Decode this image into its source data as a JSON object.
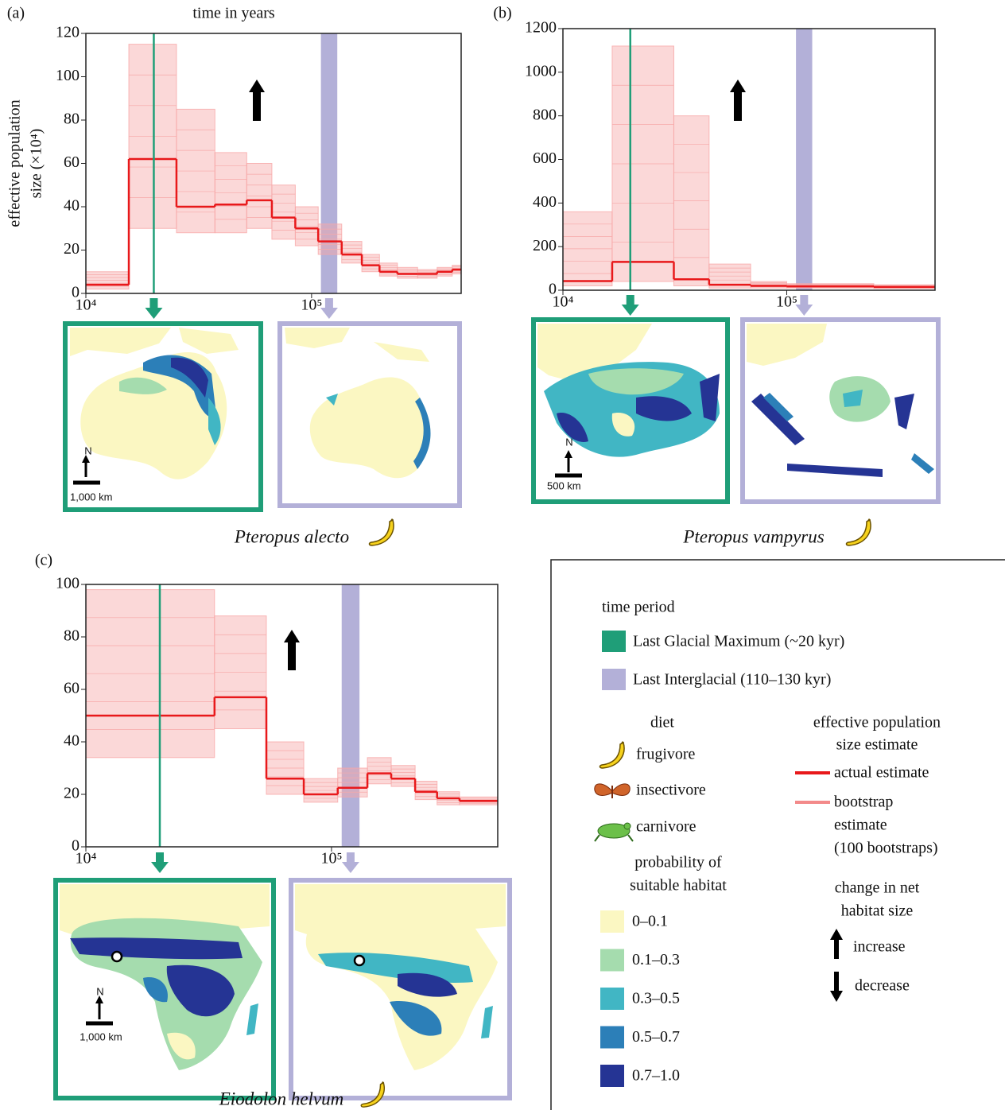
{
  "chart_data": [
    {
      "type": "step",
      "panel_label": "(a)",
      "x_label": "time in years",
      "y_label": [
        "effective population",
        "size (×10⁴)"
      ],
      "species": "Pteropus alecto",
      "scale_bar": "1,000 km",
      "north": "N",
      "xlim": [
        10000,
        460000
      ],
      "xticks": [
        {
          "value": 10000,
          "label": "10⁴"
        },
        {
          "value": 100000,
          "label": "10⁵"
        }
      ],
      "log_x": true,
      "ylim": [
        0,
        120
      ],
      "yticks": [
        0,
        20,
        40,
        60,
        80,
        100,
        120
      ],
      "x": [
        10000,
        15500,
        25200,
        37300,
        51600,
        66700,
        84700,
        107000,
        136000,
        167000,
        200000,
        240000,
        295000,
        360000,
        420000
      ],
      "values": [
        4,
        62,
        40,
        41,
        43,
        35,
        30,
        24,
        18,
        13,
        10,
        9,
        9,
        10,
        11
      ],
      "bootstrap_low": [
        2,
        30,
        28,
        28,
        30,
        25,
        22,
        18,
        14,
        10,
        8,
        7,
        7,
        8,
        9
      ],
      "bootstrap_high": [
        10,
        115,
        85,
        65,
        60,
        50,
        40,
        32,
        24,
        18,
        14,
        12,
        11,
        12,
        13
      ],
      "color": "#e8191b",
      "bootstrap_color": "#f7a8a8",
      "lgm": 20000,
      "lig": [
        110000,
        130000
      ],
      "lgm_color": "#1f9e78",
      "lig_color": "#b3b0d8",
      "habitat_change": "increase"
    },
    {
      "type": "step",
      "panel_label": "(b)",
      "species": "Pteropus vampyrus",
      "scale_bar": "500 km",
      "north": "N",
      "xlim": [
        10000,
        460000
      ],
      "xticks": [
        {
          "value": 10000,
          "label": "10⁴"
        },
        {
          "value": 100000,
          "label": "10⁵"
        }
      ],
      "log_x": true,
      "ylim": [
        0,
        1200
      ],
      "yticks": [
        0,
        200,
        400,
        600,
        800,
        1000,
        1200
      ],
      "x": [
        10000,
        16600,
        31300,
        45000,
        69000,
        100000,
        245000
      ],
      "values": [
        42,
        130,
        50,
        25,
        20,
        18,
        15
      ],
      "bootstrap_low": [
        20,
        40,
        20,
        10,
        10,
        10,
        8
      ],
      "bootstrap_high": [
        360,
        1120,
        800,
        120,
        40,
        30,
        25
      ],
      "color": "#e8191b",
      "bootstrap_color": "#f7a8a8",
      "lgm": 20000,
      "lig": [
        110000,
        130000
      ],
      "lgm_color": "#1f9e78",
      "lig_color": "#b3b0d8",
      "habitat_change": "increase"
    },
    {
      "type": "step",
      "panel_label": "(c)",
      "species": "Eiodolon helvum",
      "scale_bar": "1,000 km",
      "north": "N",
      "xlim": [
        10000,
        475000
      ],
      "xticks": [
        {
          "value": 10000,
          "label": "10⁴"
        },
        {
          "value": 100000,
          "label": "10⁵"
        }
      ],
      "log_x": true,
      "ylim": [
        0,
        100
      ],
      "yticks": [
        0,
        20,
        40,
        60,
        80,
        100
      ],
      "x": [
        10000,
        33400,
        54300,
        77100,
        106000,
        140000,
        175000,
        219000,
        269000,
        332000
      ],
      "values": [
        50,
        57,
        26,
        20,
        22.5,
        28,
        26,
        21,
        18.5,
        17.5
      ],
      "bootstrap_low": [
        34,
        45,
        20,
        17,
        19,
        24,
        23,
        18,
        16,
        16
      ],
      "bootstrap_high": [
        98,
        88,
        40,
        26,
        30,
        34,
        31,
        25,
        21,
        19
      ],
      "color": "#e8191b",
      "bootstrap_color": "#f7a8a8",
      "lgm": 20000,
      "lig": [
        110000,
        130000
      ],
      "lgm_color": "#1f9e78",
      "lig_color": "#b3b0d8",
      "habitat_change": "increase"
    }
  ],
  "legend": {
    "period_title": "time period",
    "periods": [
      {
        "label": "Last Glacial Maximum (~20 kyr)",
        "color": "#1f9e78"
      },
      {
        "label": "Last Interglacial (110–130 kyr)",
        "color": "#b3b0d8"
      }
    ],
    "diet_title": "diet",
    "diets": [
      "frugivore",
      "insectivore",
      "carnivore"
    ],
    "habitat_title": [
      "probability of",
      "suitable habitat"
    ],
    "habitat": [
      {
        "label": "0–0.1",
        "color": "#fbf7c2"
      },
      {
        "label": "0.1–0.3",
        "color": "#a5dcae"
      },
      {
        "label": "0.3–0.5",
        "color": "#41b6c4"
      },
      {
        "label": "0.5–0.7",
        "color": "#2c7fb8"
      },
      {
        "label": "0.7–1.0",
        "color": "#253494"
      }
    ],
    "estimate_title": [
      "effective population",
      "size estimate"
    ],
    "estimates": [
      {
        "label": [
          "actual estimate"
        ],
        "color": "#e8191b"
      },
      {
        "label": [
          "bootstrap",
          "estimate",
          "(100 bootstraps)"
        ],
        "color": "#f38a8a"
      }
    ],
    "change_title": [
      "change in net",
      "habitat size"
    ],
    "changes": [
      "increase",
      "decrease"
    ]
  }
}
